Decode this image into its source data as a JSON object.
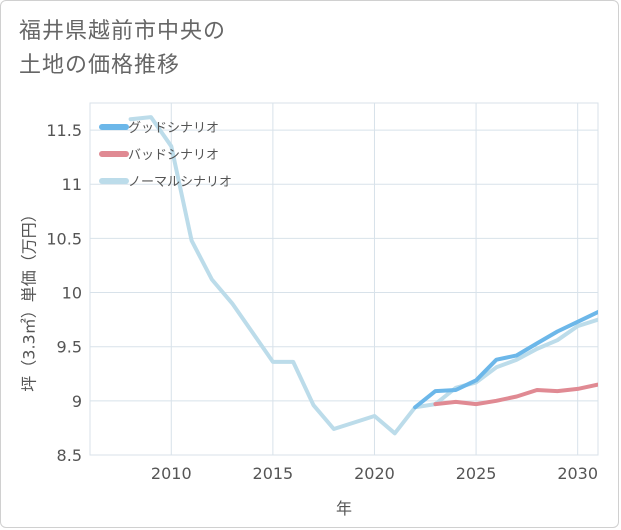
{
  "title": {
    "line1": "福井県越前市中央の",
    "line2": "土地の価格推移"
  },
  "chart_data": {
    "type": "line",
    "xlabel": "年",
    "ylabel": "坪（3.3㎡）単価（万円）",
    "xlim": [
      2006,
      2031
    ],
    "ylim": [
      8.5,
      11.75
    ],
    "xticks": [
      2010,
      2015,
      2020,
      2025,
      2030
    ],
    "yticks": [
      8.5,
      9,
      9.5,
      10,
      10.5,
      11,
      11.5
    ],
    "xtick_labels": [
      "2010",
      "2015",
      "2020",
      "2025",
      "2030"
    ],
    "ytick_labels": [
      "8.5",
      "9",
      "9.5",
      "10",
      "10.5",
      "11",
      "11.5"
    ],
    "grid": true,
    "legend_position": "top-left",
    "series": [
      {
        "name": "ノーマルシナリオ",
        "color": "#bcdcea",
        "x": [
          2008,
          2009,
          2010,
          2011,
          2012,
          2013,
          2014,
          2015,
          2016,
          2017,
          2018,
          2019,
          2020,
          2021,
          2022,
          2023,
          2024,
          2025,
          2026,
          2027,
          2028,
          2029,
          2030,
          2031
        ],
        "values": [
          11.6,
          11.62,
          11.35,
          10.48,
          10.12,
          9.9,
          9.63,
          9.36,
          9.36,
          8.96,
          8.74,
          8.8,
          8.86,
          8.7,
          8.94,
          8.97,
          9.12,
          9.17,
          9.31,
          9.38,
          9.48,
          9.56,
          9.69,
          9.75
        ]
      },
      {
        "name": "バッドシナリオ",
        "color": "#e08a93",
        "x": [
          2023,
          2024,
          2025,
          2026,
          2027,
          2028,
          2029,
          2030,
          2031
        ],
        "values": [
          8.97,
          8.99,
          8.97,
          9.0,
          9.04,
          9.1,
          9.09,
          9.11,
          9.15
        ]
      },
      {
        "name": "グッドシナリオ",
        "color": "#6cb7e9",
        "x": [
          2022,
          2023,
          2024,
          2025,
          2026,
          2027,
          2028,
          2029,
          2030,
          2031
        ],
        "values": [
          8.94,
          9.09,
          9.1,
          9.19,
          9.38,
          9.42,
          9.53,
          9.64,
          9.73,
          9.82
        ]
      }
    ],
    "legend": [
      {
        "name": "グッドシナリオ",
        "color": "#6cb7e9"
      },
      {
        "name": "バッドシナリオ",
        "color": "#e08a93"
      },
      {
        "name": "ノーマルシナリオ",
        "color": "#bcdcea"
      }
    ]
  }
}
